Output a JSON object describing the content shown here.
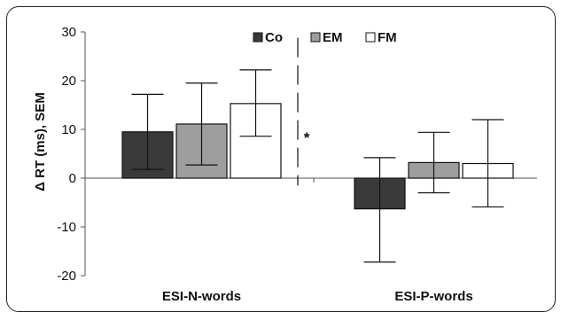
{
  "chart_data": {
    "type": "bar",
    "ylabel": "Δ RT (ms), SEM",
    "ylim": [
      -20,
      30
    ],
    "yticks": [
      -20,
      -10,
      0,
      10,
      20,
      30
    ],
    "categories": [
      "ESI-N-words",
      "ESI-P-words"
    ],
    "series": [
      {
        "name": "Co",
        "color": "#3a3a3a",
        "values": [
          9.5,
          -6.3
        ],
        "err_low": [
          1.8,
          -17.2
        ],
        "err_high": [
          17.2,
          4.2
        ]
      },
      {
        "name": "EM",
        "color": "#9e9e9e",
        "values": [
          11.1,
          3.2
        ],
        "err_low": [
          2.7,
          -3.0
        ],
        "err_high": [
          19.5,
          9.4
        ]
      },
      {
        "name": "FM",
        "color": "#ffffff",
        "values": [
          15.3,
          3.0
        ],
        "err_low": [
          8.6,
          -5.9
        ],
        "err_high": [
          22.2,
          12.0
        ]
      }
    ],
    "legend_position": "top-center",
    "annotation": {
      "text": "*",
      "category": "ESI-N-words",
      "range": [
        -1.5,
        28.8
      ]
    }
  }
}
